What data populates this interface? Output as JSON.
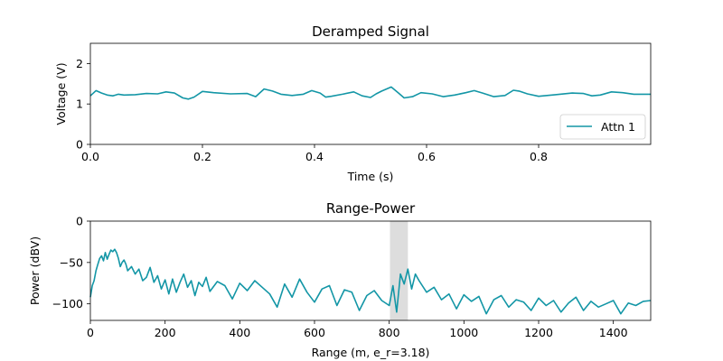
{
  "chart_data": [
    {
      "type": "line",
      "title": "Deramped Signal",
      "xlabel": "Time (s)",
      "ylabel": "Voltage (V)",
      "xlim": [
        0.0,
        1.0
      ],
      "ylim": [
        0,
        2.5
      ],
      "xticks": [
        0.0,
        0.2,
        0.4,
        0.6,
        0.8
      ],
      "xtick_labels": [
        "0.0",
        "0.2",
        "0.4",
        "0.6",
        "0.8"
      ],
      "yticks": [
        0,
        1,
        2
      ],
      "ytick_labels": [
        "0",
        "1",
        "2"
      ],
      "grid": false,
      "legend": {
        "placement": "lower-right",
        "entries": [
          "Attn 1"
        ]
      },
      "series": [
        {
          "name": "Attn 1",
          "color": "#1396a6",
          "x": [
            0.0,
            0.01,
            0.02,
            0.03,
            0.04,
            0.05,
            0.06,
            0.08,
            0.1,
            0.12,
            0.135,
            0.15,
            0.165,
            0.175,
            0.185,
            0.2,
            0.22,
            0.25,
            0.28,
            0.295,
            0.31,
            0.325,
            0.34,
            0.36,
            0.38,
            0.395,
            0.41,
            0.42,
            0.43,
            0.45,
            0.47,
            0.485,
            0.5,
            0.51,
            0.52,
            0.537,
            0.55,
            0.56,
            0.575,
            0.59,
            0.61,
            0.63,
            0.65,
            0.67,
            0.685,
            0.7,
            0.72,
            0.74,
            0.755,
            0.765,
            0.78,
            0.8,
            0.83,
            0.86,
            0.88,
            0.895,
            0.91,
            0.93,
            0.95,
            0.97,
            1.0
          ],
          "y": [
            1.2,
            1.33,
            1.27,
            1.22,
            1.2,
            1.24,
            1.22,
            1.23,
            1.26,
            1.25,
            1.3,
            1.27,
            1.15,
            1.12,
            1.17,
            1.31,
            1.28,
            1.25,
            1.26,
            1.18,
            1.37,
            1.32,
            1.24,
            1.21,
            1.24,
            1.33,
            1.27,
            1.17,
            1.19,
            1.24,
            1.3,
            1.2,
            1.16,
            1.25,
            1.32,
            1.42,
            1.27,
            1.15,
            1.18,
            1.28,
            1.25,
            1.18,
            1.22,
            1.28,
            1.33,
            1.27,
            1.18,
            1.21,
            1.34,
            1.32,
            1.25,
            1.19,
            1.23,
            1.27,
            1.26,
            1.2,
            1.22,
            1.3,
            1.28,
            1.24,
            1.24
          ]
        }
      ]
    },
    {
      "type": "line",
      "title": "Range-Power",
      "xlabel": "Range (m, e_r=3.18)",
      "ylabel": "Power (dBV)",
      "xlim": [
        0,
        1500
      ],
      "ylim": [
        -120,
        0
      ],
      "xticks": [
        0,
        200,
        400,
        600,
        800,
        1000,
        1200,
        1400
      ],
      "xtick_labels": [
        "0",
        "200",
        "400",
        "600",
        "800",
        "1000",
        "1200",
        "1400"
      ],
      "yticks": [
        0,
        -50,
        -100
      ],
      "ytick_labels": [
        "0",
        "−50",
        "−100"
      ],
      "grid": false,
      "highlight_band": {
        "x": [
          802,
          850
        ],
        "color": "#d9d9d9"
      },
      "series": [
        {
          "color": "#1396a6",
          "x": [
            0,
            5,
            10,
            15,
            20,
            25,
            30,
            35,
            40,
            45,
            50,
            55,
            60,
            65,
            70,
            75,
            80,
            85,
            90,
            95,
            100,
            110,
            120,
            130,
            140,
            150,
            160,
            170,
            180,
            190,
            200,
            210,
            220,
            230,
            240,
            250,
            260,
            270,
            280,
            290,
            300,
            310,
            320,
            340,
            360,
            380,
            400,
            420,
            440,
            460,
            480,
            500,
            520,
            540,
            560,
            580,
            600,
            620,
            640,
            660,
            680,
            700,
            720,
            740,
            760,
            780,
            800,
            810,
            820,
            830,
            840,
            850,
            860,
            870,
            880,
            900,
            920,
            940,
            960,
            980,
            1000,
            1020,
            1040,
            1060,
            1080,
            1100,
            1120,
            1140,
            1160,
            1180,
            1200,
            1220,
            1240,
            1260,
            1280,
            1300,
            1320,
            1340,
            1360,
            1380,
            1400,
            1420,
            1440,
            1460,
            1480,
            1500
          ],
          "y": [
            -92,
            -78,
            -72,
            -60,
            -52,
            -45,
            -42,
            -48,
            -38,
            -46,
            -40,
            -35,
            -37,
            -34,
            -38,
            -45,
            -55,
            -50,
            -47,
            -52,
            -60,
            -55,
            -64,
            -58,
            -72,
            -68,
            -56,
            -74,
            -66,
            -82,
            -71,
            -88,
            -70,
            -86,
            -74,
            -64,
            -80,
            -72,
            -90,
            -74,
            -79,
            -68,
            -85,
            -73,
            -78,
            -94,
            -75,
            -84,
            -72,
            -80,
            -88,
            -104,
            -76,
            -92,
            -70,
            -86,
            -98,
            -82,
            -78,
            -102,
            -83,
            -86,
            -108,
            -90,
            -84,
            -96,
            -102,
            -78,
            -110,
            -64,
            -76,
            -58,
            -82,
            -64,
            -72,
            -86,
            -80,
            -95,
            -88,
            -106,
            -89,
            -97,
            -91,
            -112,
            -95,
            -90,
            -104,
            -95,
            -98,
            -108,
            -93,
            -102,
            -96,
            -110,
            -99,
            -92,
            -108,
            -97,
            -104,
            -100,
            -96,
            -112,
            -99,
            -102,
            -97,
            -96
          ]
        }
      ]
    }
  ]
}
